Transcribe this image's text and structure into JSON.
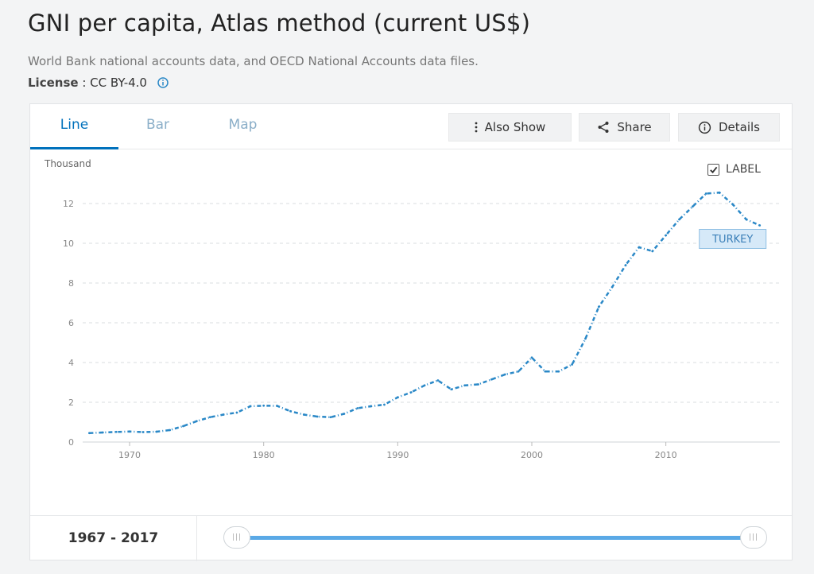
{
  "header": {
    "title": "GNI per capita, Atlas method (current US$)",
    "source": "World Bank national accounts data, and OECD National Accounts data files.",
    "license_label": "License",
    "license_sep": " : ",
    "license_value": "CC BY-4.0"
  },
  "tabs": [
    {
      "label": "Line",
      "active": true
    },
    {
      "label": "Bar",
      "active": false
    },
    {
      "label": "Map",
      "active": false
    }
  ],
  "toolbar": {
    "also_show": "Also Show",
    "share": "Share",
    "details": "Details"
  },
  "chart_controls": {
    "label_toggle": "LABEL",
    "label_checked": true
  },
  "chart_data": {
    "type": "line",
    "ylabel": "Thousand",
    "ylim": [
      0,
      13
    ],
    "yticks": [
      0,
      2,
      4,
      6,
      8,
      10,
      12
    ],
    "xlim": [
      1966.5,
      2018.5
    ],
    "xticks": [
      1970,
      1980,
      1990,
      2000,
      2010
    ],
    "grid": true,
    "line_color": "#2a88c7",
    "series": [
      {
        "name": "TURKEY",
        "x": [
          1967,
          1968,
          1969,
          1970,
          1971,
          1972,
          1973,
          1974,
          1975,
          1976,
          1977,
          1978,
          1979,
          1980,
          1981,
          1982,
          1983,
          1984,
          1985,
          1986,
          1987,
          1988,
          1989,
          1990,
          1991,
          1992,
          1993,
          1994,
          1995,
          1996,
          1997,
          1998,
          1999,
          2000,
          2001,
          2002,
          2003,
          2004,
          2005,
          2006,
          2007,
          2008,
          2009,
          2010,
          2011,
          2012,
          2013,
          2014,
          2015,
          2016,
          2017
        ],
        "y": [
          0.45,
          0.48,
          0.51,
          0.53,
          0.5,
          0.52,
          0.6,
          0.8,
          1.05,
          1.25,
          1.38,
          1.48,
          1.8,
          1.83,
          1.82,
          1.55,
          1.38,
          1.28,
          1.25,
          1.42,
          1.7,
          1.8,
          1.88,
          2.25,
          2.5,
          2.85,
          3.1,
          2.65,
          2.85,
          2.9,
          3.15,
          3.4,
          3.55,
          4.25,
          3.55,
          3.55,
          3.9,
          5.2,
          6.8,
          7.8,
          8.9,
          9.8,
          9.6,
          10.4,
          11.2,
          11.85,
          12.5,
          12.55,
          11.95,
          11.2,
          10.9
        ]
      }
    ]
  },
  "footer": {
    "range_label": "1967 - 2017",
    "range_start": 1967,
    "range_end": 2017
  }
}
